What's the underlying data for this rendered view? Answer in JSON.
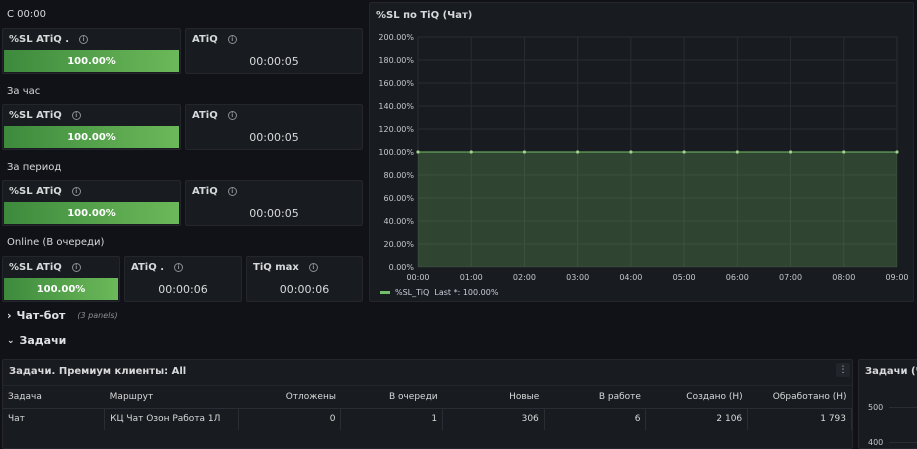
{
  "sections": {
    "s00": "С 00:00",
    "hour": "За час",
    "period": "За период",
    "online": "Online (В очереди)"
  },
  "panels": {
    "sl_label": "%SL ATiQ .",
    "sl_label2": "%SL ATiQ",
    "atiq_label": "ATiQ",
    "atiq_dot_label": "ATiQ .",
    "tiq_max_label": "TiQ max",
    "sl_s00": "100.00%",
    "atiq_s00": "00:00:05",
    "sl_hour": "100.00%",
    "atiq_hour": "00:00:05",
    "sl_period": "100.00%",
    "atiq_period": "00:00:05",
    "sl_online": "100.00%",
    "atiq_online": "00:00:06",
    "tiqmax_online": "00:00:06",
    "info_glyph": "i"
  },
  "chart": {
    "panel_title": "%SL по TiQ (Чат)",
    "legend_name": "%SL_TiQ",
    "legend_last": "Last *: 100.00%"
  },
  "chart_data": {
    "type": "area",
    "title": "%SL по TiQ (Чат)",
    "x": [
      "00:00",
      "01:00",
      "02:00",
      "03:00",
      "04:00",
      "05:00",
      "06:00",
      "07:00",
      "08:00",
      "09:00"
    ],
    "y_ticks": [
      "0.00%",
      "20.00%",
      "40.00%",
      "60.00%",
      "80.00%",
      "100.00%",
      "120.00%",
      "140.00%",
      "160.00%",
      "180.00%",
      "200.00%"
    ],
    "series": [
      {
        "name": "%SL_TiQ",
        "values": [
          100,
          100,
          100,
          100,
          100,
          100,
          100,
          100,
          100,
          100
        ]
      }
    ],
    "ylim": [
      0,
      200
    ],
    "grid": true,
    "legend_position": "bottom-left",
    "color": "#73bf69"
  },
  "rows": {
    "chatbot_title": "Чат-бот",
    "chatbot_sub": "(3 panels)",
    "chatbot_chevron": "›",
    "tasks_title": "Задачи",
    "tasks_chevron": "⌄"
  },
  "table": {
    "panel_title": "Задачи. Премиум клиенты: All",
    "menu_glyph": "⋮",
    "headers": [
      "Задача",
      "Маршрут",
      "Отложены",
      "В очереди",
      "Новые",
      "В работе",
      "Создано (Н)",
      "Обработано (Н)"
    ],
    "rows": [
      [
        "Чат",
        "КЦ Чат Озон Работа 1Л",
        "0",
        "1",
        "306",
        "6",
        "2 106",
        "1 793"
      ]
    ]
  },
  "side_panel": {
    "title": "Задачи (Ча",
    "tick_500": "500",
    "tick_400": "400"
  }
}
